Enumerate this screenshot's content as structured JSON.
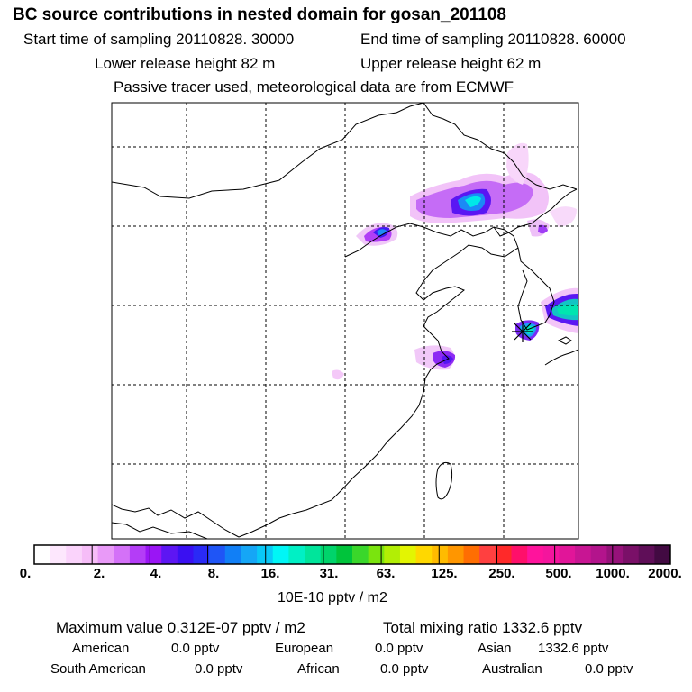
{
  "header": {
    "title": "BC  source contributions in nested domain for gosan_201108",
    "start_time": "Start time of sampling 20110828. 30000",
    "end_time": "End time of sampling 20110828. 60000",
    "lower_height": "Lower release height   82 m",
    "upper_height": "Upper release height   62 m",
    "note": "Passive tracer used, meteorological data are from ECMWF"
  },
  "colorbar": {
    "labels": [
      "0.",
      "2.",
      "4.",
      "8.",
      "16.",
      "31.",
      "63.",
      "125.",
      "250.",
      "500.",
      "1000.",
      "2000."
    ],
    "units": "10E-10 pptv / m2",
    "colors": [
      "#ffffff",
      "#fde7fd",
      "#fad3fb",
      "#f6bdf8",
      "#e99af8",
      "#d471f8",
      "#b43df7",
      "#9a15f5",
      "#5d16f3",
      "#3a10f2",
      "#2a2af6",
      "#1f55f6",
      "#117ff6",
      "#15a6f6",
      "#09c8f7",
      "#00f6f6",
      "#00f0c5",
      "#00e59b",
      "#00d46b",
      "#00c43b",
      "#3ad72b",
      "#7ae40e",
      "#b2ee05",
      "#e3f502",
      "#ffd800",
      "#ffbb00",
      "#ff9600",
      "#ff6e02",
      "#ff4040",
      "#ff2929",
      "#ff0f6a",
      "#ff139c",
      "#f4159d",
      "#e11599",
      "#c81593",
      "#b3148c",
      "#96127a",
      "#7a1068",
      "#5f0e58",
      "#420a42"
    ]
  },
  "summary": {
    "max_value": "Maximum value  0.312E-07 pptv / m2",
    "total": "Total mixing ratio     1332.6 pptv",
    "american_label": "American",
    "american_value": "0.0 pptv",
    "european_label": "European",
    "european_value": "0.0 pptv",
    "asian_label": "Asian",
    "asian_value": "1332.6 pptv",
    "south_american_label": "South American",
    "south_american_value": "0.0 pptv",
    "african_label": "African",
    "african_value": "0.0 pptv",
    "australian_label": "Australian",
    "australian_value": "0.0 pptv"
  }
}
